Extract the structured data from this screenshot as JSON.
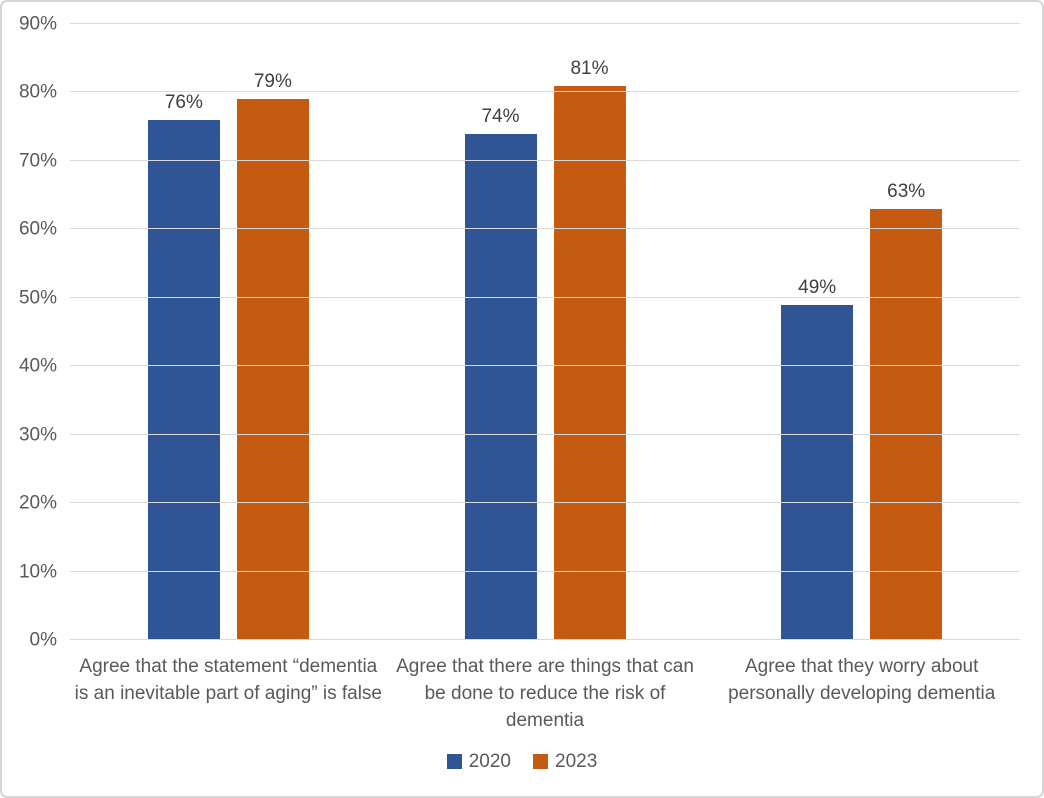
{
  "chart_data": {
    "type": "bar",
    "title": "",
    "xlabel": "",
    "ylabel": "",
    "ylim": [
      0,
      90
    ],
    "grid": true,
    "legend_position": "bottom-center",
    "yticks": [
      {
        "value": 0,
        "label": "0%"
      },
      {
        "value": 10,
        "label": "10%"
      },
      {
        "value": 20,
        "label": "20%"
      },
      {
        "value": 30,
        "label": "30%"
      },
      {
        "value": 40,
        "label": "40%"
      },
      {
        "value": 50,
        "label": "50%"
      },
      {
        "value": 60,
        "label": "60%"
      },
      {
        "value": 70,
        "label": "70%"
      },
      {
        "value": 80,
        "label": "80%"
      },
      {
        "value": 90,
        "label": "90%"
      }
    ],
    "categories": [
      "Agree that the statement  “dementia is an inevitable part of aging” is false",
      "Agree that there are things that can be done to reduce the risk of dementia",
      "Agree that they worry about personally developing dementia"
    ],
    "category_lines": [
      [
        "Agree that the statement  “dementia",
        "is an inevitable part of aging” is false"
      ],
      [
        "Agree that there are things that can",
        "be done to reduce the risk of",
        "dementia"
      ],
      [
        "Agree that they worry about",
        "personally developing dementia"
      ]
    ],
    "series": [
      {
        "name": "2020",
        "color": "#2F5597",
        "values": [
          76,
          74,
          49
        ],
        "labels": [
          "76%",
          "74%",
          "49%"
        ]
      },
      {
        "name": "2023",
        "color": "#C55A11",
        "values": [
          79,
          81,
          63
        ],
        "labels": [
          "79%",
          "81%",
          "63%"
        ]
      }
    ]
  },
  "colors": {
    "background": "#FFFFFF",
    "border": "#D6D6D6",
    "gridline": "#D9D9D9",
    "axis_text": "#595959",
    "data_label_text": "#404040",
    "series_2020": "#2F5597",
    "series_2023": "#C55A11"
  }
}
